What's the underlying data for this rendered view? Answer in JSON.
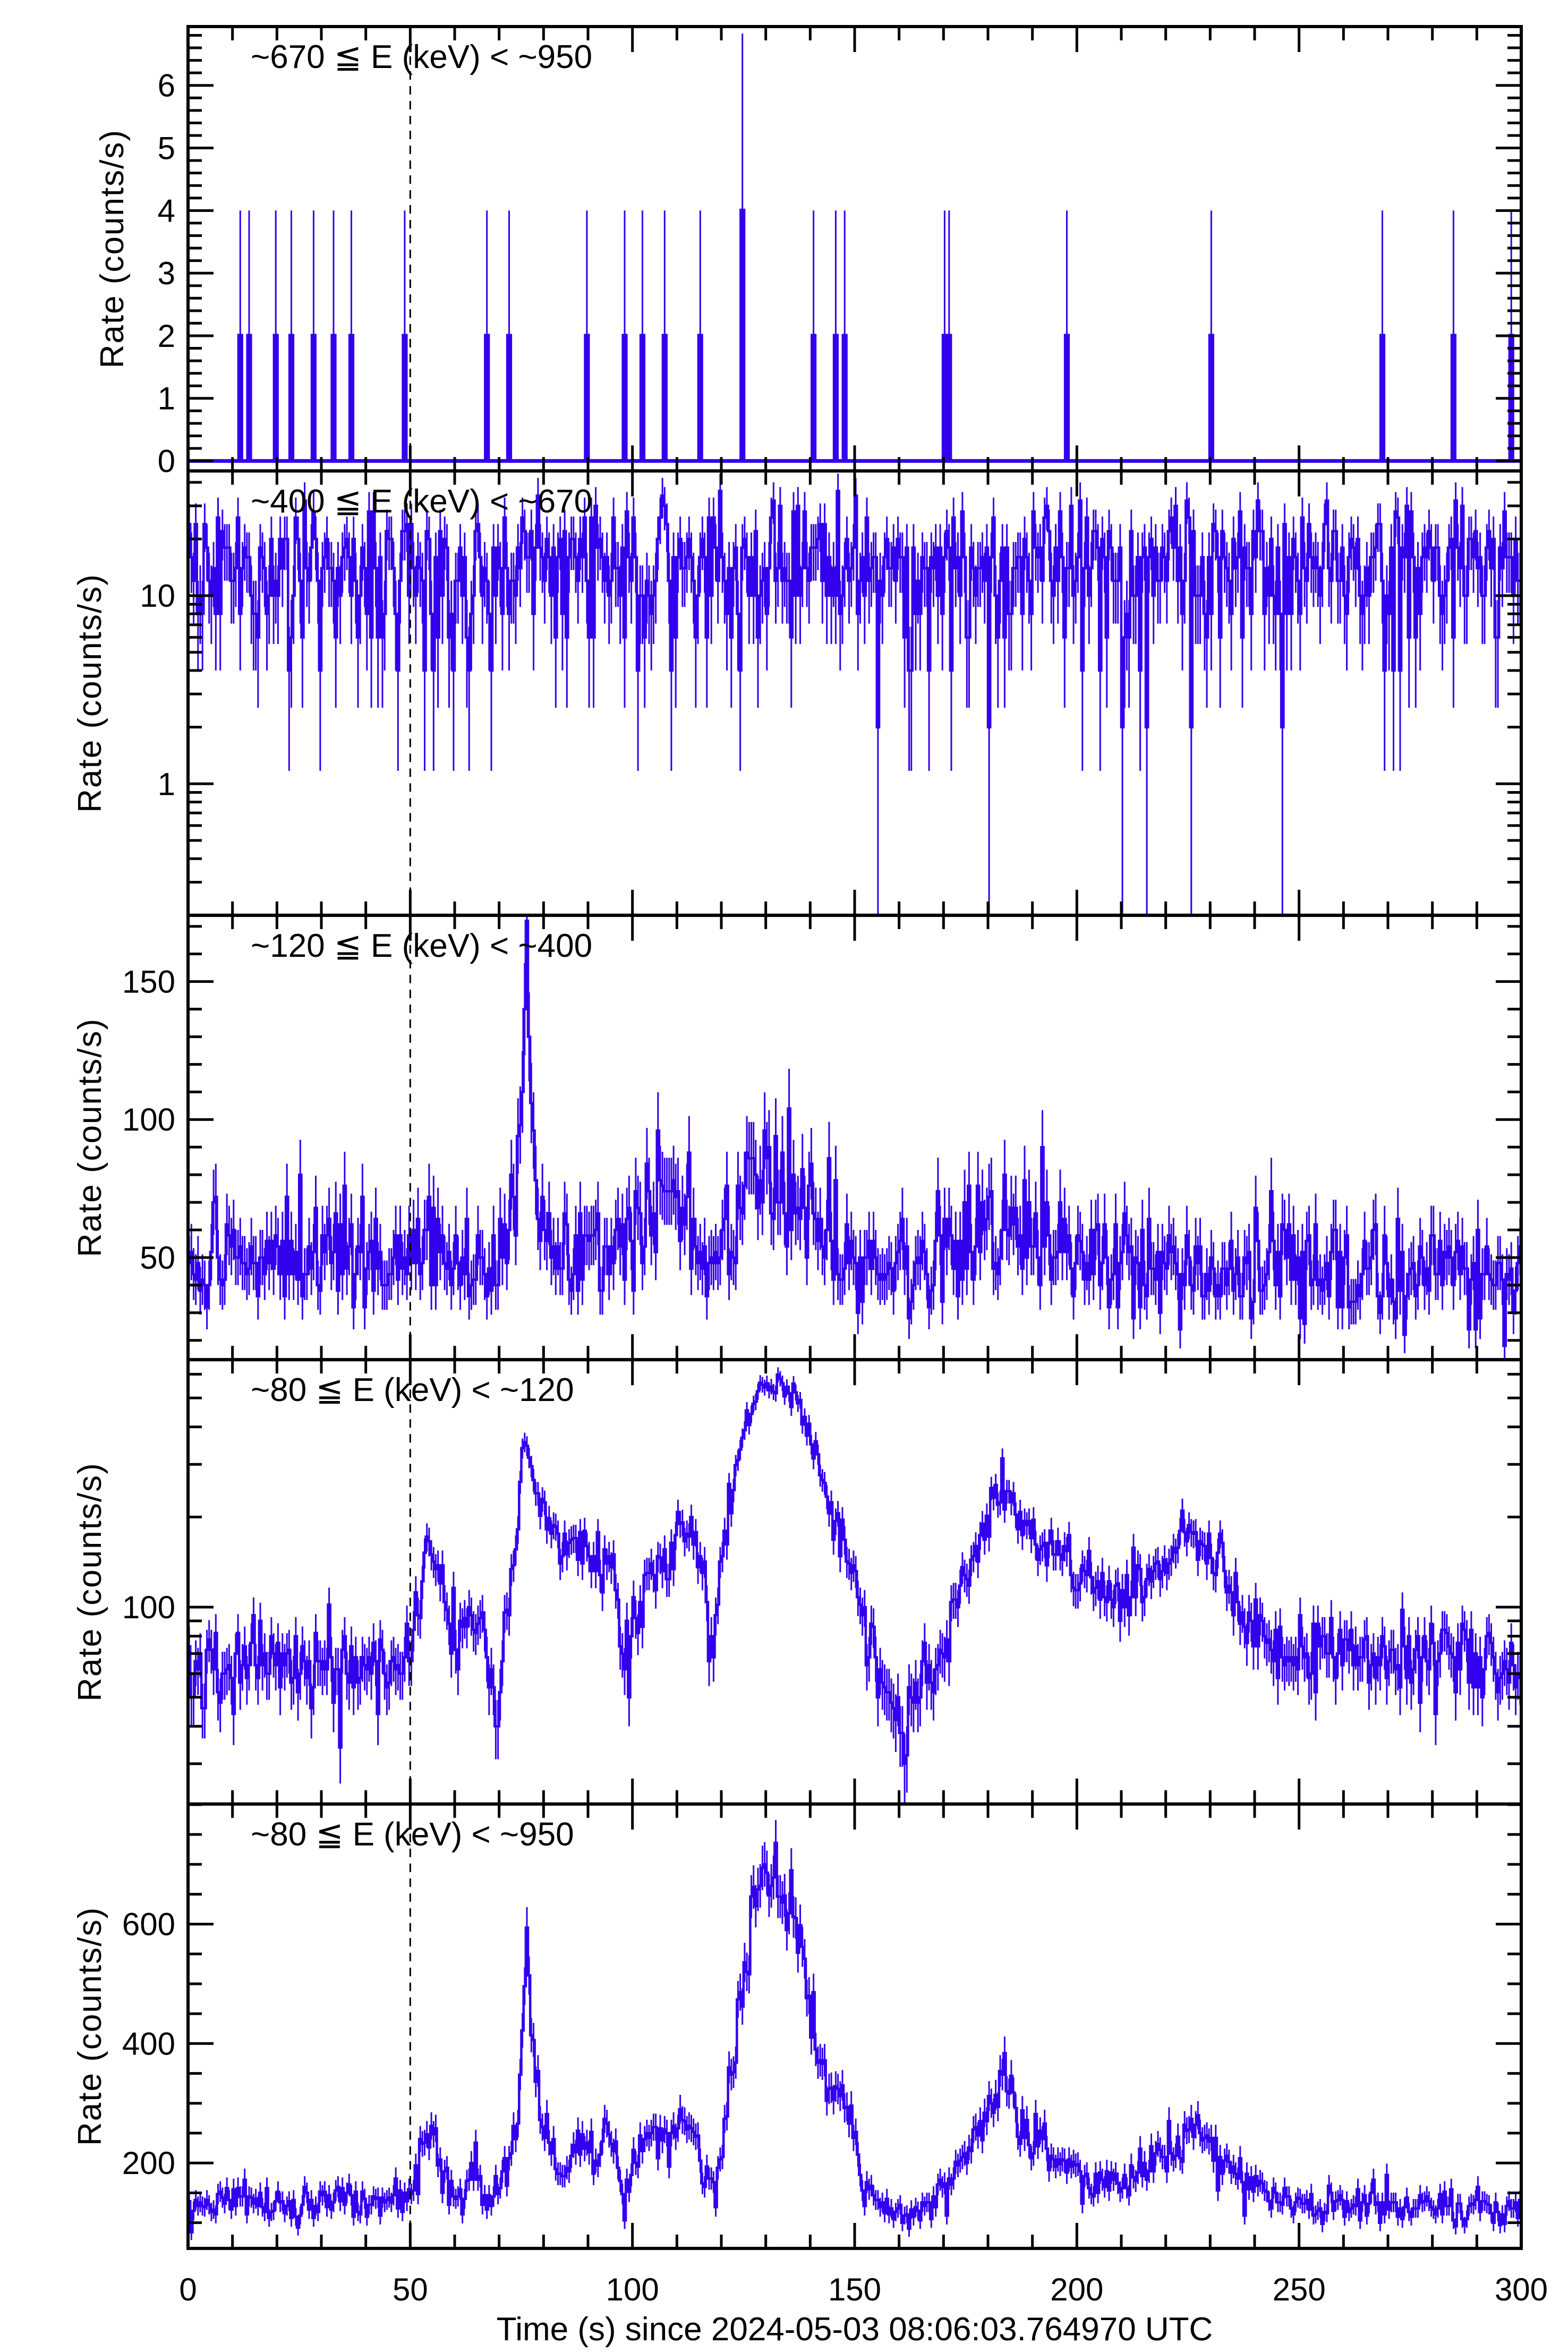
{
  "chart_data": {
    "type": "line",
    "xlabel": "Time (s) since 2024-05-03 08:06:03.764970 UTC",
    "xlim": [
      0,
      300
    ],
    "xticks": [
      0,
      50,
      100,
      150,
      200,
      250,
      300
    ],
    "xtick_labels": [
      "0",
      "50",
      "100",
      "150",
      "200",
      "250",
      "300"
    ],
    "bin_width_s": 0.5,
    "reference_line_time": 50,
    "line_color": "#3300ee",
    "panels": [
      {
        "title": "~670 ≦ E (keV) < ~950",
        "ylabel": "Rate (counts/s)",
        "scale": "linear",
        "ylim": [
          -0.16,
          6.94
        ],
        "yticks": [
          0,
          1,
          2,
          3,
          4,
          5,
          6
        ],
        "ytick_labels": [
          "0",
          "1",
          "2",
          "3",
          "4",
          "5",
          "6"
        ],
        "minor_step": 0.2,
        "kind": "sparse",
        "spikes": [
          {
            "t": 11.8,
            "counts": 1
          },
          {
            "t": 13.5,
            "counts": 1
          },
          {
            "t": 19.9,
            "counts": 1
          },
          {
            "t": 23.3,
            "counts": 1
          },
          {
            "t": 28.0,
            "counts": 1
          },
          {
            "t": 32.7,
            "counts": 1
          },
          {
            "t": 36.8,
            "counts": 1
          },
          {
            "t": 48.6,
            "counts": 1
          },
          {
            "t": 67.2,
            "counts": 1
          },
          {
            "t": 72.2,
            "counts": 1
          },
          {
            "t": 89.8,
            "counts": 1
          },
          {
            "t": 98.2,
            "counts": 1
          },
          {
            "t": 102.3,
            "counts": 1
          },
          {
            "t": 107.3,
            "counts": 1
          },
          {
            "t": 115.1,
            "counts": 1
          },
          {
            "t": 124.5,
            "counts": 2
          },
          {
            "t": 140.7,
            "counts": 1
          },
          {
            "t": 145.5,
            "counts": 1
          },
          {
            "t": 147.5,
            "counts": 1
          },
          {
            "t": 170.4,
            "counts": 1
          },
          {
            "t": 171.1,
            "counts": 1
          },
          {
            "t": 197.8,
            "counts": 1
          },
          {
            "t": 230.2,
            "counts": 1
          },
          {
            "t": 268.7,
            "counts": 1
          },
          {
            "t": 284.8,
            "counts": 1
          },
          {
            "t": 297.7,
            "counts": 1
          }
        ]
      },
      {
        "title": "~400 ≦ E (keV) < ~670",
        "ylabel": "Rate (counts/s)",
        "scale": "log",
        "ylim": [
          0.2,
          46
        ],
        "yticks": [
          1,
          10
        ],
        "ytick_labels": [
          "1",
          "10"
        ],
        "kind": "binned",
        "trend": [
          [
            0,
            14
          ],
          [
            100,
            14
          ],
          [
            130,
            15
          ],
          [
            200,
            14
          ],
          [
            300,
            14
          ]
        ]
      },
      {
        "title": "~120 ≦ E (keV) < ~400",
        "ylabel": "Rate (counts/s)",
        "scale": "linear",
        "ylim": [
          13,
          174
        ],
        "yticks": [
          50,
          100,
          150
        ],
        "ytick_labels": [
          "50",
          "100",
          "150"
        ],
        "minor_step": 10,
        "kind": "binned",
        "trend": [
          [
            0,
            50
          ],
          [
            50,
            50
          ],
          [
            55,
            65
          ],
          [
            60,
            45
          ],
          [
            72,
            50
          ],
          [
            75,
            100
          ],
          [
            76,
            150
          ],
          [
            78,
            80
          ],
          [
            82,
            55
          ],
          [
            95,
            55
          ],
          [
            100,
            60
          ],
          [
            108,
            75
          ],
          [
            112,
            70
          ],
          [
            117,
            45
          ],
          [
            122,
            60
          ],
          [
            127,
            85
          ],
          [
            132,
            80
          ],
          [
            137,
            70
          ],
          [
            142,
            60
          ],
          [
            150,
            50
          ],
          [
            165,
            45
          ],
          [
            175,
            55
          ],
          [
            185,
            65
          ],
          [
            195,
            55
          ],
          [
            210,
            50
          ],
          [
            230,
            45
          ],
          [
            260,
            45
          ],
          [
            300,
            42
          ]
        ]
      },
      {
        "title": "~80 ≦ E (keV) < ~120",
        "ylabel": "Rate (counts/s)",
        "scale": "log",
        "ylim": [
          22,
          671
        ],
        "yticks": [
          100
        ],
        "ytick_labels": [
          "100"
        ],
        "kind": "binned",
        "trend": [
          [
            0,
            64
          ],
          [
            48,
            62
          ],
          [
            50,
            75
          ],
          [
            52,
            100
          ],
          [
            55,
            175
          ],
          [
            57,
            110
          ],
          [
            62,
            75
          ],
          [
            64,
            110
          ],
          [
            67,
            60
          ],
          [
            70,
            55
          ],
          [
            72,
            110
          ],
          [
            74,
            170
          ],
          [
            76,
            380
          ],
          [
            78,
            230
          ],
          [
            82,
            180
          ],
          [
            85,
            140
          ],
          [
            88,
            170
          ],
          [
            92,
            150
          ],
          [
            95,
            140
          ],
          [
            98,
            70
          ],
          [
            100,
            80
          ],
          [
            104,
            150
          ],
          [
            108,
            140
          ],
          [
            111,
            180
          ],
          [
            114,
            170
          ],
          [
            117,
            90
          ],
          [
            119,
            85
          ],
          [
            122,
            230
          ],
          [
            126,
            420
          ],
          [
            129,
            570
          ],
          [
            133,
            560
          ],
          [
            137,
            480
          ],
          [
            141,
            330
          ],
          [
            145,
            200
          ],
          [
            148,
            180
          ],
          [
            152,
            85
          ],
          [
            158,
            55
          ],
          [
            162,
            45
          ],
          [
            168,
            60
          ],
          [
            176,
            140
          ],
          [
            180,
            200
          ],
          [
            184,
            250
          ],
          [
            188,
            180
          ],
          [
            195,
            150
          ],
          [
            200,
            120
          ],
          [
            210,
            110
          ],
          [
            218,
            140
          ],
          [
            225,
            180
          ],
          [
            230,
            160
          ],
          [
            238,
            95
          ],
          [
            245,
            72
          ],
          [
            255,
            70
          ],
          [
            270,
            72
          ],
          [
            285,
            68
          ],
          [
            300,
            60
          ]
        ]
      },
      {
        "title": "~80 ≦ E (keV) < ~950",
        "ylabel": "Rate (counts/s)",
        "scale": "linear",
        "ylim": [
          57,
          801
        ],
        "yticks": [
          200,
          400,
          600
        ],
        "ytick_labels": [
          "200",
          "400",
          "600"
        ],
        "minor_step": 50,
        "kind": "binned",
        "trend": [
          [
            0,
            130
          ],
          [
            50,
            140
          ],
          [
            52,
            180
          ],
          [
            55,
            280
          ],
          [
            57,
            170
          ],
          [
            62,
            140
          ],
          [
            64,
            200
          ],
          [
            67,
            130
          ],
          [
            72,
            180
          ],
          [
            75,
            350
          ],
          [
            76,
            600
          ],
          [
            77,
            450
          ],
          [
            79,
            300
          ],
          [
            82,
            230
          ],
          [
            85,
            180
          ],
          [
            88,
            250
          ],
          [
            92,
            200
          ],
          [
            95,
            260
          ],
          [
            98,
            150
          ],
          [
            100,
            170
          ],
          [
            104,
            250
          ],
          [
            108,
            230
          ],
          [
            111,
            290
          ],
          [
            114,
            250
          ],
          [
            116,
            180
          ],
          [
            119,
            170
          ],
          [
            122,
            350
          ],
          [
            126,
            550
          ],
          [
            129,
            700
          ],
          [
            133,
            680
          ],
          [
            137,
            600
          ],
          [
            141,
            420
          ],
          [
            145,
            300
          ],
          [
            148,
            300
          ],
          [
            152,
            160
          ],
          [
            158,
            120
          ],
          [
            163,
            110
          ],
          [
            170,
            150
          ],
          [
            176,
            230
          ],
          [
            180,
            280
          ],
          [
            184,
            360
          ],
          [
            188,
            250
          ],
          [
            195,
            220
          ],
          [
            200,
            180
          ],
          [
            210,
            160
          ],
          [
            218,
            200
          ],
          [
            225,
            260
          ],
          [
            230,
            230
          ],
          [
            238,
            160
          ],
          [
            245,
            140
          ],
          [
            255,
            130
          ],
          [
            265,
            135
          ],
          [
            280,
            125
          ],
          [
            300,
            115
          ]
        ]
      }
    ]
  }
}
